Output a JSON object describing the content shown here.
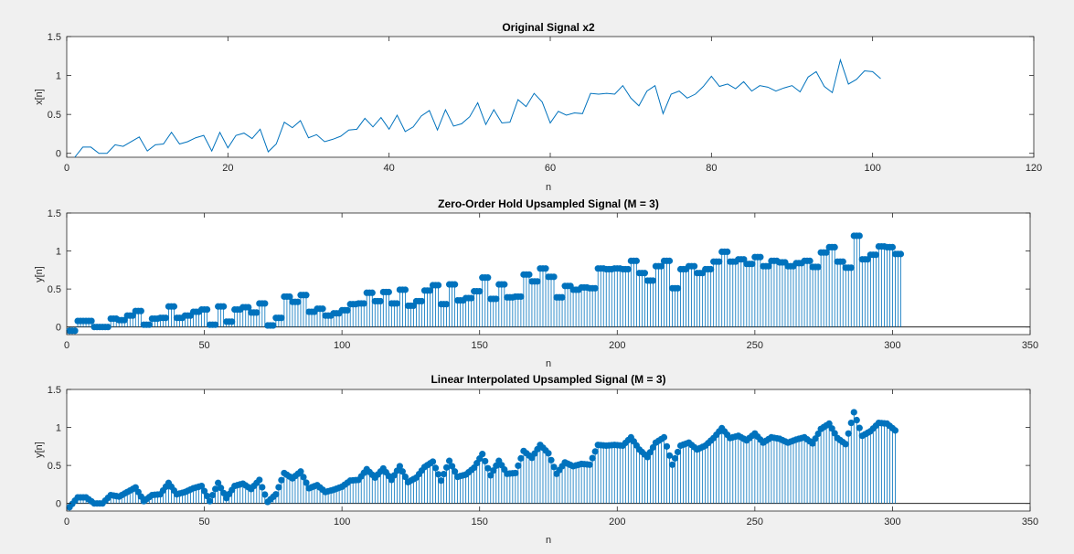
{
  "chart_data": [
    {
      "type": "line",
      "title": "Original Signal x2",
      "xlabel": "n",
      "ylabel": "x[n]",
      "xlim": [
        0,
        120
      ],
      "ylim": [
        -0.05,
        1.5
      ],
      "xticks": [
        "0",
        "20",
        "40",
        "60",
        "80",
        "100",
        "120"
      ],
      "yticks": [
        "0",
        "0.5",
        "1",
        "1.5"
      ],
      "grid": false,
      "color": "#0072BD",
      "x_start": 1,
      "values": [
        -0.05,
        0.08,
        0.08,
        0.0,
        0.0,
        0.11,
        0.09,
        0.15,
        0.21,
        0.03,
        0.11,
        0.12,
        0.27,
        0.12,
        0.15,
        0.2,
        0.23,
        0.03,
        0.27,
        0.07,
        0.23,
        0.26,
        0.19,
        0.31,
        0.02,
        0.12,
        0.4,
        0.33,
        0.42,
        0.2,
        0.24,
        0.15,
        0.18,
        0.22,
        0.3,
        0.31,
        0.45,
        0.34,
        0.46,
        0.31,
        0.49,
        0.28,
        0.34,
        0.48,
        0.55,
        0.3,
        0.56,
        0.35,
        0.38,
        0.47,
        0.65,
        0.37,
        0.56,
        0.39,
        0.4,
        0.69,
        0.6,
        0.77,
        0.66,
        0.39,
        0.54,
        0.49,
        0.52,
        0.51,
        0.77,
        0.76,
        0.77,
        0.76,
        0.87,
        0.71,
        0.61,
        0.8,
        0.87,
        0.51,
        0.76,
        0.8,
        0.71,
        0.76,
        0.86,
        0.99,
        0.86,
        0.89,
        0.83,
        0.92,
        0.8,
        0.87,
        0.85,
        0.8,
        0.84,
        0.87,
        0.79,
        0.98,
        1.05,
        0.86,
        0.78,
        1.2,
        0.89,
        0.95,
        1.06,
        1.05,
        0.96
      ]
    },
    {
      "type": "stem",
      "title": "Zero-Order Hold Upsampled Signal (M = 3)",
      "xlabel": "n",
      "ylabel": "y[n]",
      "xlim": [
        0,
        350
      ],
      "ylim": [
        -0.1,
        1.5
      ],
      "xticks": [
        "0",
        "50",
        "100",
        "150",
        "200",
        "250",
        "300",
        "350"
      ],
      "yticks": [
        "0",
        "0.5",
        "1",
        "1.5"
      ],
      "upsample_factor": 3,
      "method": "zero-order hold",
      "color": "#0072BD"
    },
    {
      "type": "stem",
      "title": "Linear Interpolated Upsampled Signal (M = 3)",
      "xlabel": "n",
      "ylabel": "y[n]",
      "xlim": [
        0,
        350
      ],
      "ylim": [
        -0.1,
        1.5
      ],
      "xticks": [
        "0",
        "50",
        "100",
        "150",
        "200",
        "250",
        "300",
        "350"
      ],
      "yticks": [
        "0",
        "0.5",
        "1",
        "1.5"
      ],
      "upsample_factor": 3,
      "method": "linear interpolation",
      "color": "#0072BD"
    }
  ]
}
